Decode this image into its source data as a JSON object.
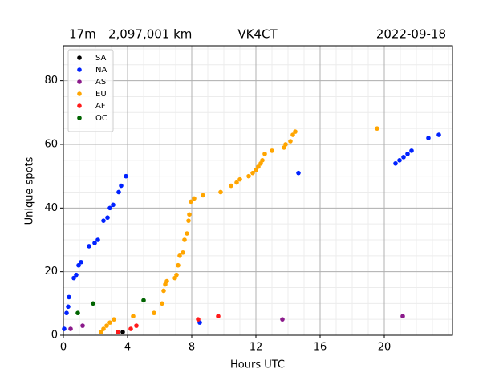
{
  "chart_data": {
    "type": "scatter",
    "band": "17m",
    "distance": "2,097,001 km",
    "callsign": "VK4CT",
    "date": "2022-09-18",
    "x_label": "Hours UTC",
    "y_label": "Unique spots",
    "xlim": [
      0,
      24.25
    ],
    "ylim": [
      0,
      91
    ],
    "xticks": [
      0,
      4,
      8,
      12,
      16,
      20
    ],
    "yticks": [
      0,
      20,
      40,
      60,
      80
    ],
    "grid": true,
    "minor_grid": true,
    "legend": "upper left",
    "series": [
      {
        "name": "SA",
        "color": "#000000",
        "x": [
          3.7
        ],
        "values": [
          1
        ]
      },
      {
        "name": "NA",
        "color": "#0022ff",
        "x": [
          0.05,
          0.2,
          0.3,
          0.35,
          0.65,
          0.8,
          0.95,
          1.1,
          1.6,
          1.95,
          2.15,
          2.5,
          2.75,
          2.9,
          3.1,
          3.45,
          3.6,
          3.9,
          8.5,
          14.65,
          20.7,
          20.95,
          21.2,
          21.45,
          21.7,
          22.75,
          23.4
        ],
        "values": [
          2,
          7,
          9,
          12,
          18,
          19,
          22,
          23,
          28,
          29,
          30,
          36,
          37,
          40,
          41,
          45,
          47,
          50,
          4,
          51,
          54,
          55,
          56,
          57,
          58,
          62,
          63
        ]
      },
      {
        "name": "AS",
        "color": "#8b1a8b",
        "x": [
          0.45,
          1.2,
          13.65,
          21.15
        ],
        "values": [
          2,
          3,
          5,
          6
        ]
      },
      {
        "name": "EU",
        "color": "#ffa500",
        "x": [
          2.35,
          2.5,
          2.7,
          2.9,
          3.15,
          4.35,
          5.65,
          6.15,
          6.25,
          6.35,
          6.45,
          6.95,
          7.05,
          7.15,
          7.25,
          7.45,
          7.55,
          7.7,
          7.8,
          7.85,
          7.95,
          8.15,
          8.7,
          9.8,
          10.45,
          10.8,
          11.0,
          11.55,
          11.8,
          12.0,
          12.15,
          12.3,
          12.4,
          12.55,
          13.0,
          13.75,
          13.85,
          14.15,
          14.3,
          14.45,
          19.55
        ],
        "values": [
          1,
          2,
          3,
          4,
          5,
          6,
          7,
          10,
          14,
          16,
          17,
          18,
          19,
          22,
          25,
          26,
          30,
          32,
          36,
          38,
          42,
          43,
          44,
          45,
          47,
          48,
          49,
          50,
          51,
          52,
          53,
          54,
          55,
          57,
          58,
          59,
          60,
          61,
          63,
          64,
          65
        ]
      },
      {
        "name": "AF",
        "color": "#ff1a1a",
        "x": [
          3.4,
          4.2,
          4.55,
          8.4,
          9.65
        ],
        "values": [
          1,
          2,
          3,
          5,
          6
        ]
      },
      {
        "name": "OC",
        "color": "#006400",
        "x": [
          0.9,
          1.85,
          5.0
        ],
        "values": [
          7,
          10,
          11
        ]
      }
    ]
  }
}
